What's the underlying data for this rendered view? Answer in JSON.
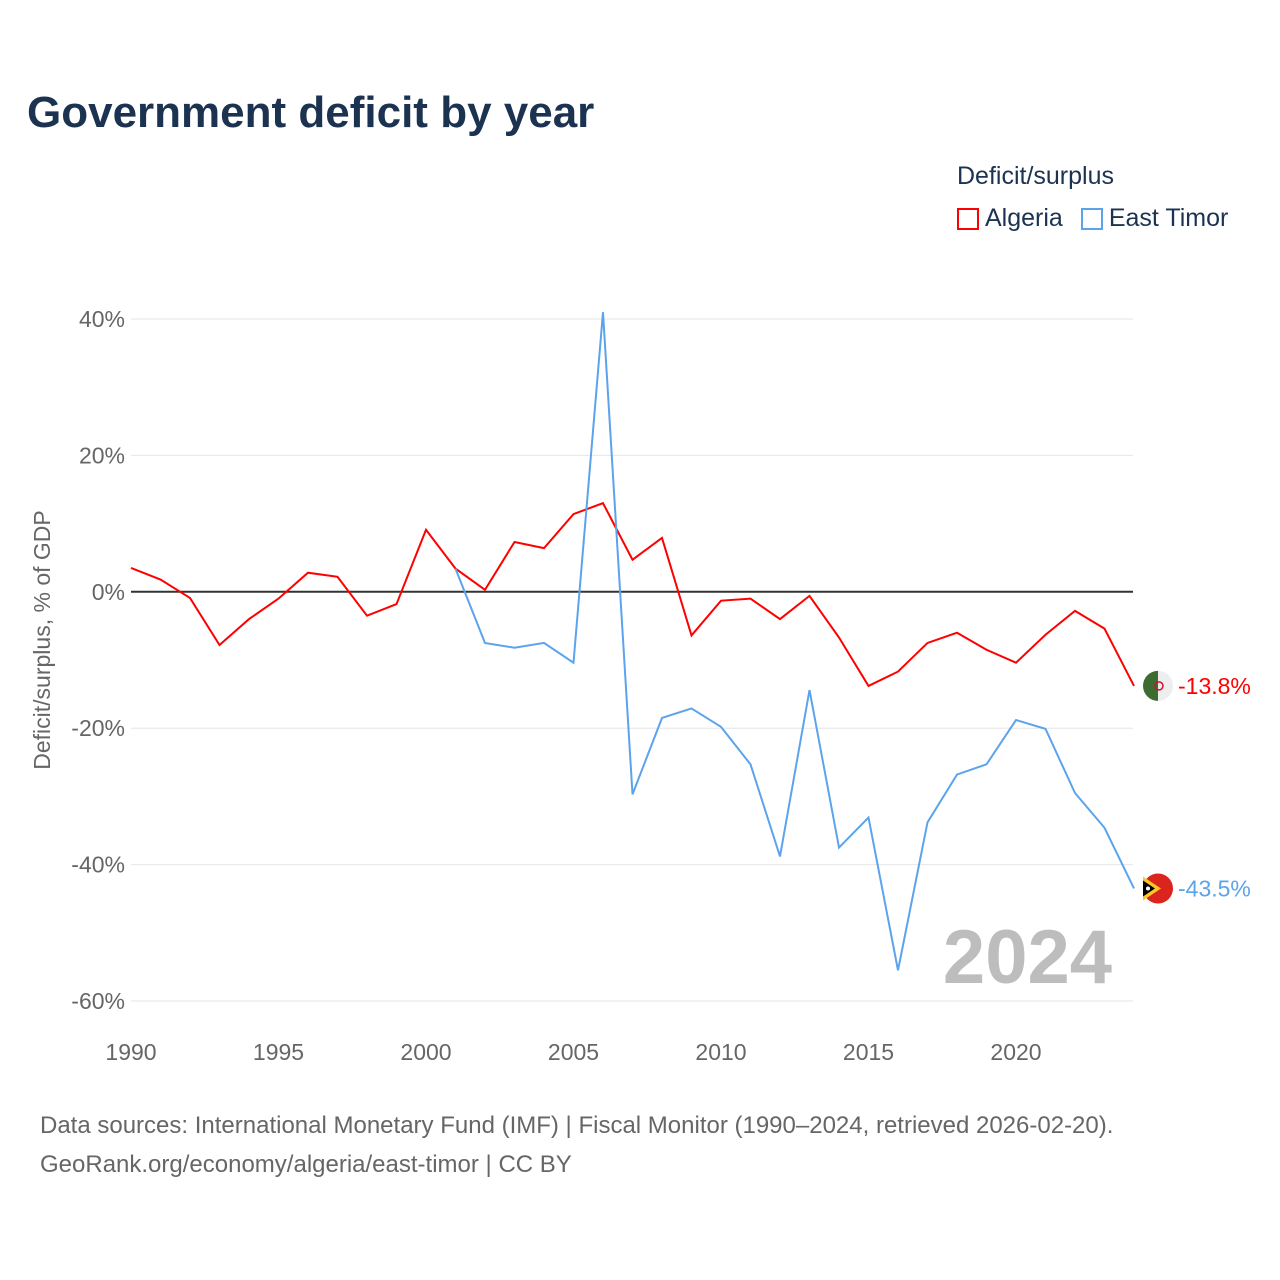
{
  "title": "Government deficit by year",
  "legend": {
    "title": "Deficit/surplus",
    "items": [
      {
        "name": "Algeria",
        "color": "#ff0000"
      },
      {
        "name": "East Timor",
        "color": "#5ba3ec"
      }
    ]
  },
  "year_watermark": "2024",
  "source": {
    "line1": "Data sources: International Monetary Fund (IMF) | Fiscal Monitor (1990–2024, retrieved 2026-02-20).",
    "line2": "GeoRank.org/economy/algeria/east-timor | CC BY"
  },
  "chart_data": {
    "type": "line",
    "title": "Government deficit by year",
    "xlabel": "",
    "ylabel": "Deficit/surplus, % of GDP",
    "xlim": [
      1990,
      2024
    ],
    "ylim": [
      -60,
      40
    ],
    "xticks": [
      1990,
      1995,
      2000,
      2005,
      2010,
      2015,
      2020
    ],
    "xtick_labels": [
      "1990",
      "1995",
      "2000",
      "2005",
      "2010",
      "2015",
      "2020"
    ],
    "yticks": [
      40,
      20,
      0,
      -20,
      -40,
      -60
    ],
    "ytick_labels": [
      "40%",
      "20%",
      "0%",
      "-20%",
      "-40%",
      "-60%"
    ],
    "grid": true,
    "legend_position": "top-right",
    "series": [
      {
        "name": "Algeria",
        "color": "#ff0000",
        "end_label": "-13.8%",
        "x": [
          1990,
          1991,
          1992,
          1993,
          1994,
          1995,
          1996,
          1997,
          1998,
          1999,
          2000,
          2001,
          2002,
          2003,
          2004,
          2005,
          2006,
          2007,
          2008,
          2009,
          2010,
          2011,
          2012,
          2013,
          2014,
          2015,
          2016,
          2017,
          2018,
          2019,
          2020,
          2021,
          2022,
          2023,
          2024
        ],
        "values": [
          3.5,
          1.8,
          -0.9,
          -7.8,
          -4.0,
          -1.0,
          2.8,
          2.2,
          -3.5,
          -1.8,
          9.1,
          3.4,
          0.3,
          7.3,
          6.4,
          11.4,
          13.0,
          4.7,
          7.9,
          -6.4,
          -1.3,
          -1.0,
          -4.0,
          -0.6,
          -6.7,
          -13.8,
          -11.7,
          -7.5,
          -6.0,
          -8.5,
          -10.4,
          -6.3,
          -2.8,
          -5.4,
          -13.8
        ]
      },
      {
        "name": "East Timor",
        "color": "#5ba3ec",
        "end_label": "-43.5%",
        "x": [
          2001,
          2002,
          2003,
          2004,
          2005,
          2006,
          2007,
          2008,
          2009,
          2010,
          2011,
          2012,
          2013,
          2014,
          2015,
          2016,
          2017,
          2018,
          2019,
          2020,
          2021,
          2022,
          2023,
          2024
        ],
        "values": [
          3.4,
          -7.5,
          -8.2,
          -7.5,
          -10.4,
          41.0,
          -29.7,
          -18.5,
          -17.1,
          -19.8,
          -25.3,
          -38.8,
          -14.4,
          -37.5,
          -33.1,
          -55.5,
          -33.8,
          -26.8,
          -25.3,
          -18.8,
          -20.1,
          -29.5,
          -34.6,
          -43.5
        ]
      }
    ]
  }
}
